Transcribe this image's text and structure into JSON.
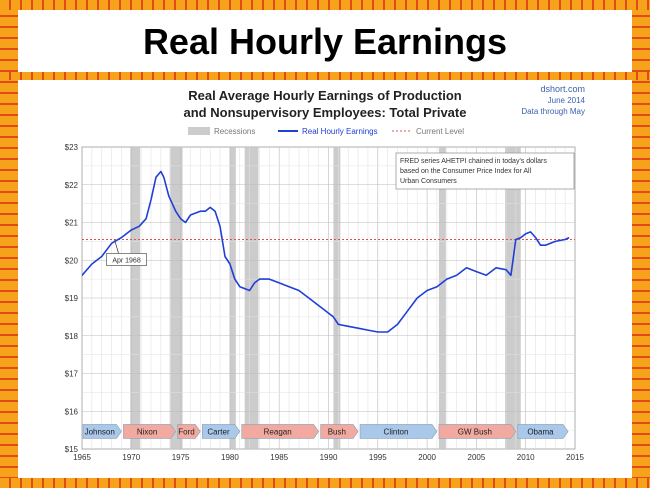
{
  "slide": {
    "title": "Real Hourly Earnings"
  },
  "colors": {
    "frame_orange": "#f7a21b",
    "frame_red": "#e24a17",
    "series": "#1f3fd6",
    "current_level": "#e05050",
    "recession": "#cccccc"
  },
  "chart_data": {
    "type": "line",
    "title_line1": "Real Average Hourly Earnings of Production",
    "title_line2": "and Nonsupervisory Employees: Total Private",
    "source": "dshort.com",
    "date": "June 2014",
    "data_through": "Data through May",
    "legend": {
      "recessions": "Recessions",
      "series": "Real Hourly Earnings",
      "current": "Current Level"
    },
    "note": [
      "FRED series AHETPI chained in today's dollars",
      "based on the Consumer Price Index for All",
      "Urban Consumers"
    ],
    "callout": "Apr 1968",
    "callout_point": [
      1968.3,
      20.55
    ],
    "current_level": 20.55,
    "xlim": [
      1965,
      2015
    ],
    "ylim": [
      15,
      23
    ],
    "x_ticks": [
      "1965",
      "1970",
      "1975",
      "1980",
      "1985",
      "1990",
      "1995",
      "2000",
      "2005",
      "2010",
      "2015"
    ],
    "y_ticks": [
      "$15",
      "$16",
      "$17",
      "$18",
      "$19",
      "$20",
      "$21",
      "$22",
      "$23"
    ],
    "recessions": [
      [
        1969.9,
        1970.9
      ],
      [
        1973.9,
        1975.2
      ],
      [
        1980.0,
        1980.6
      ],
      [
        1981.5,
        1982.9
      ],
      [
        1990.5,
        1991.2
      ],
      [
        2001.2,
        2001.9
      ],
      [
        2007.9,
        2009.5
      ]
    ],
    "presidents": [
      {
        "name": "Johnson",
        "start": 1965.0,
        "end": 1969.1,
        "color": "#a9c8ea"
      },
      {
        "name": "Nixon",
        "start": 1969.1,
        "end": 1974.6,
        "color": "#f2aaa0"
      },
      {
        "name": "Ford",
        "start": 1974.6,
        "end": 1977.1,
        "color": "#f2aaa0"
      },
      {
        "name": "Carter",
        "start": 1977.1,
        "end": 1981.1,
        "color": "#a9c8ea"
      },
      {
        "name": "Reagan",
        "start": 1981.1,
        "end": 1989.1,
        "color": "#f2aaa0"
      },
      {
        "name": "Bush",
        "start": 1989.1,
        "end": 1993.1,
        "color": "#f2aaa0"
      },
      {
        "name": "Clinton",
        "start": 1993.1,
        "end": 2001.1,
        "color": "#a9c8ea"
      },
      {
        "name": "GW Bush",
        "start": 2001.1,
        "end": 2009.1,
        "color": "#f2aaa0"
      },
      {
        "name": "Obama",
        "start": 2009.1,
        "end": 2014.4,
        "color": "#a9c8ea"
      }
    ],
    "series": [
      {
        "name": "Real Hourly Earnings",
        "x": [
          1964.5,
          1965.0,
          1966.0,
          1967.0,
          1968.0,
          1969.0,
          1970.0,
          1970.8,
          1971.5,
          1972.0,
          1972.5,
          1973.0,
          1973.3,
          1973.8,
          1974.5,
          1975.0,
          1975.5,
          1976.0,
          1977.0,
          1977.5,
          1978.0,
          1978.5,
          1979.0,
          1979.5,
          1980.0,
          1980.5,
          1981.0,
          1982.0,
          1982.5,
          1983.0,
          1984.0,
          1985.0,
          1986.0,
          1987.0,
          1988.0,
          1989.0,
          1990.0,
          1990.5,
          1991.0,
          1992.0,
          1993.0,
          1994.0,
          1995.0,
          1996.0,
          1997.0,
          1998.0,
          1999.0,
          2000.0,
          2001.0,
          2002.0,
          2003.0,
          2004.0,
          2005.0,
          2006.0,
          2007.0,
          2008.0,
          2008.5,
          2009.0,
          2009.5,
          2010.0,
          2010.5,
          2011.0,
          2011.5,
          2012.0,
          2013.0,
          2014.0,
          2014.4
        ],
        "values": [
          19.5,
          19.6,
          19.9,
          20.1,
          20.45,
          20.6,
          20.8,
          20.9,
          21.1,
          21.6,
          22.2,
          22.35,
          22.2,
          21.7,
          21.3,
          21.1,
          21.0,
          21.2,
          21.3,
          21.3,
          21.4,
          21.3,
          20.9,
          20.1,
          19.9,
          19.5,
          19.3,
          19.2,
          19.4,
          19.5,
          19.5,
          19.4,
          19.3,
          19.2,
          19.0,
          18.8,
          18.6,
          18.5,
          18.3,
          18.25,
          18.2,
          18.15,
          18.1,
          18.1,
          18.3,
          18.65,
          19.0,
          19.2,
          19.3,
          19.5,
          19.6,
          19.8,
          19.7,
          19.6,
          19.8,
          19.75,
          19.6,
          20.55,
          20.6,
          20.7,
          20.75,
          20.6,
          20.4,
          20.4,
          20.5,
          20.55,
          20.6
        ]
      }
    ]
  }
}
